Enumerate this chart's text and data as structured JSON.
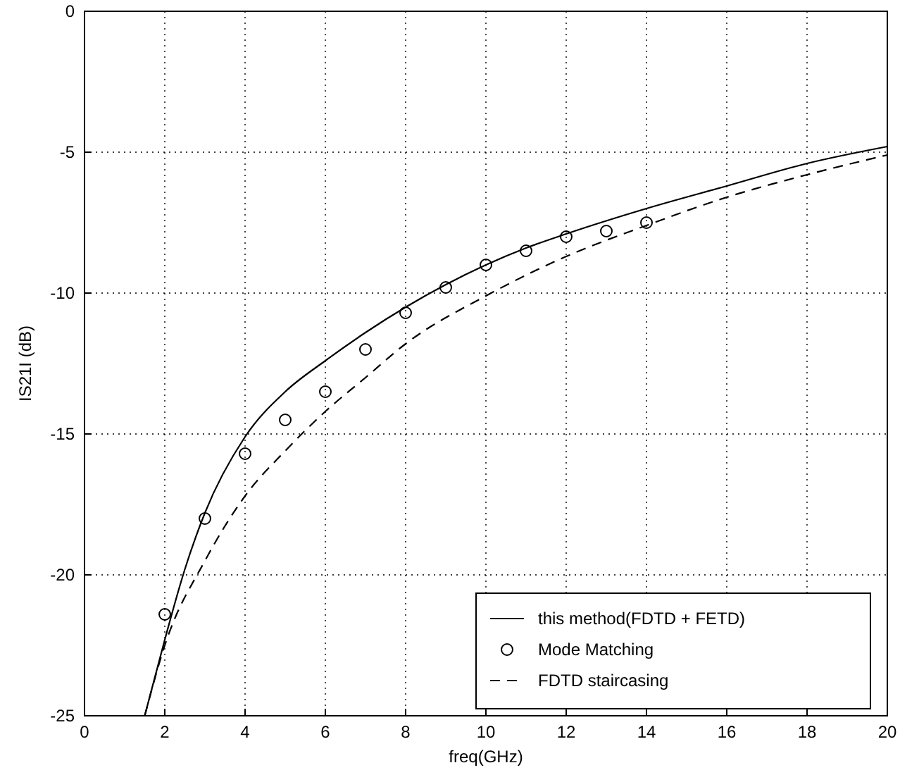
{
  "chart_data": {
    "type": "line",
    "xlabel": "freq(GHz)",
    "ylabel": "IS21I (dB)",
    "xlim": [
      0,
      20
    ],
    "ylim": [
      -25,
      0
    ],
    "xticks": [
      0,
      2,
      4,
      6,
      8,
      10,
      12,
      14,
      16,
      18,
      20
    ],
    "yticks": [
      -25,
      -20,
      -15,
      -10,
      -5,
      0
    ],
    "grid": true,
    "legend": "bottom right",
    "series": [
      {
        "name": "this method(FDTD + FETD)",
        "line_style": "solid",
        "color": "#000000",
        "x": [
          1.5,
          2,
          2.5,
          3,
          4,
          5,
          6,
          7,
          8,
          9,
          10,
          11,
          12,
          14,
          16,
          18,
          20
        ],
        "values": [
          -25,
          -22.3,
          -19.8,
          -17.8,
          -15.1,
          -13.5,
          -12.4,
          -11.4,
          -10.5,
          -9.7,
          -9,
          -8.4,
          -7.9,
          -7,
          -6.2,
          -5.4,
          -4.8
        ]
      },
      {
        "name": "Mode Matching",
        "type": "scatter",
        "marker": "circle",
        "color": "#000000",
        "x": [
          2,
          3,
          4,
          5,
          6,
          7,
          8,
          9,
          10,
          11,
          12,
          13,
          14
        ],
        "values": [
          -21.4,
          -18,
          -15.7,
          -14.5,
          -13.5,
          -12,
          -10.7,
          -9.8,
          -9,
          -8.5,
          -8,
          -7.8,
          -7.5
        ]
      },
      {
        "name": "FDTD staircasing",
        "line_style": "dashed",
        "color": "#000000",
        "x": [
          1.5,
          2,
          3,
          4,
          5,
          6,
          7,
          8,
          10,
          12,
          14,
          16,
          18,
          20
        ],
        "values": [
          -25,
          -22.5,
          -19.5,
          -17.2,
          -15.6,
          -14.2,
          -13,
          -11.8,
          -10.1,
          -8.7,
          -7.6,
          -6.6,
          -5.8,
          -5.1
        ]
      }
    ]
  }
}
